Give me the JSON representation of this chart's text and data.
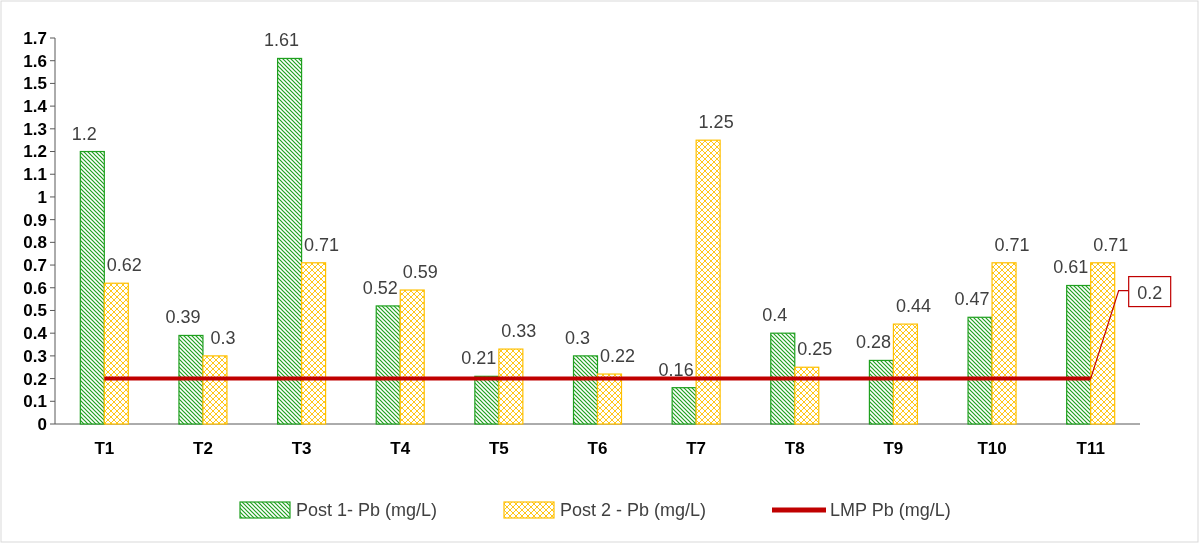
{
  "chart_data": {
    "type": "bar",
    "categories": [
      "T1",
      "T2",
      "T3",
      "T4",
      "T5",
      "T6",
      "T7",
      "T8",
      "T9",
      "T10",
      "T11"
    ],
    "series": [
      {
        "name": "Post 1- Pb (mg/L)",
        "color": "#1fa01f",
        "values": [
          1.2,
          0.39,
          1.61,
          0.52,
          0.21,
          0.3,
          0.16,
          0.4,
          0.28,
          0.47,
          0.61
        ]
      },
      {
        "name": "Post 2 - Pb (mg/L)",
        "color": "#ffc000",
        "values": [
          0.62,
          0.3,
          0.71,
          0.59,
          0.33,
          0.22,
          1.25,
          0.25,
          0.44,
          0.71,
          0.71
        ]
      },
      {
        "name": "LMP  Pb (mg/L)",
        "type": "line",
        "color": "#c00000",
        "values": [
          0.2,
          0.2,
          0.2,
          0.2,
          0.2,
          0.2,
          0.2,
          0.2,
          0.2,
          0.2,
          0.2
        ],
        "value_labels": [
          null,
          null,
          null,
          null,
          null,
          null,
          null,
          null,
          null,
          null,
          "0.2"
        ]
      }
    ],
    "ylim": [
      0,
      1.7
    ],
    "yticks": [
      0,
      0.1,
      0.2,
      0.3,
      0.4,
      0.5,
      0.6,
      0.7,
      0.8,
      0.9,
      1,
      1.1,
      1.2,
      1.3,
      1.4,
      1.5,
      1.6,
      1.7
    ],
    "grid": false,
    "legend": "bottom",
    "data_labels": true,
    "marker": "none",
    "line_style": "solid"
  }
}
